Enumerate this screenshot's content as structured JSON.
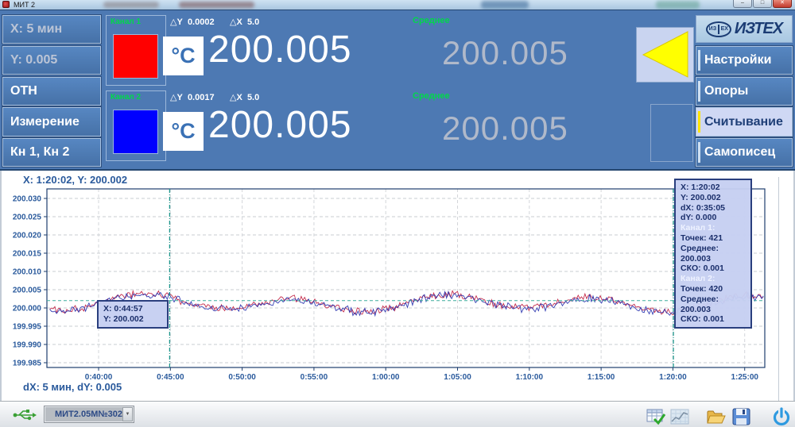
{
  "window": {
    "title": "МИТ 2"
  },
  "sidebar": {
    "items": [
      {
        "label": "X: 5 мин"
      },
      {
        "label": "Y: 0.005"
      },
      {
        "label": "ОТН"
      },
      {
        "label": "Измерение"
      },
      {
        "label": "Кн 1, Кн 2"
      }
    ]
  },
  "channels": [
    {
      "name": "Канал 1",
      "swatch_color": "#ff0000",
      "delta_y_caption": "△",
      "delta_y_axis": "Y",
      "delta_y_value": "0.0002",
      "delta_x_caption": "△",
      "delta_x_axis": "X",
      "delta_x_value": "5.0",
      "unit": "°C",
      "value": "200.005",
      "avg_caption": "Среднее",
      "avg_value": "200.005"
    },
    {
      "name": "Канал 2",
      "swatch_color": "#0000ff",
      "delta_y_caption": "△",
      "delta_y_axis": "Y",
      "delta_y_value": "0.0017",
      "delta_x_caption": "△",
      "delta_x_axis": "X",
      "delta_x_value": "5.0",
      "unit": "°C",
      "value": "200.005",
      "avg_caption": "Среднее",
      "avg_value": "200.005"
    }
  ],
  "nav": {
    "logo_text": "ИЗТЕХ",
    "logo_badge_left": "ИЗ",
    "logo_badge_right": "ЕХ",
    "items": [
      {
        "label": "Настройки",
        "active": false
      },
      {
        "label": "Опоры",
        "active": false
      },
      {
        "label": "Считывание",
        "active": true
      },
      {
        "label": "Самописец",
        "active": false
      }
    ]
  },
  "chart": {
    "readout": "X: 1:20:02, Y: 200.002",
    "footer": "dX: 5 мин, dY: 0.005",
    "tooltip_cursor1": {
      "x": "X: 0:44:57",
      "y": "Y: 200.002"
    },
    "tooltip_stats": {
      "x": "X: 1:20:02",
      "y": "Y: 200.002",
      "dx": "dX: 0:35:05",
      "dy": "dY: 0.000",
      "ch1_title": "Канал 1:",
      "ch1_points": "Точек: 421",
      "ch1_mean": "Среднее: 200.003",
      "ch1_std": "СКО: 0.001",
      "ch2_title": "Канал 2:",
      "ch2_points": "Точек: 420",
      "ch2_mean": "Среднее: 200.003",
      "ch2_std": "СКО: 0.001"
    }
  },
  "chart_data": {
    "type": "line",
    "x_ticks": [
      {
        "minutes": 40,
        "label": "0:40:00"
      },
      {
        "minutes": 45,
        "label": "0:45:00"
      },
      {
        "minutes": 50,
        "label": "0:50:00"
      },
      {
        "minutes": 55,
        "label": "0:55:00"
      },
      {
        "minutes": 60,
        "label": "1:00:00"
      },
      {
        "minutes": 65,
        "label": "1:05:00"
      },
      {
        "minutes": 70,
        "label": "1:10:00"
      },
      {
        "minutes": 75,
        "label": "1:15:00"
      },
      {
        "minutes": 80,
        "label": "1:20:00"
      },
      {
        "minutes": 85,
        "label": "1:25:00"
      }
    ],
    "y_ticks": [
      {
        "value": 200.03,
        "label": "200.030"
      },
      {
        "value": 200.025,
        "label": "200.025"
      },
      {
        "value": 200.02,
        "label": "200.020"
      },
      {
        "value": 200.015,
        "label": "200.015"
      },
      {
        "value": 200.01,
        "label": "200.010"
      },
      {
        "value": 200.005,
        "label": "200.005"
      },
      {
        "value": 200.0,
        "label": "200.000"
      },
      {
        "value": 199.995,
        "label": "199.995"
      },
      {
        "value": 199.99,
        "label": "199.990"
      },
      {
        "value": 199.985,
        "label": "199.985"
      }
    ],
    "y_step": 0.005,
    "x_range_minutes": [
      36.4,
      86.4
    ],
    "data_t_range": [
      36.6,
      86.3
    ],
    "baseline": 200.0012,
    "waves": [
      {
        "period": 10.5,
        "amp": 0.0018,
        "t_ref": 40.5
      },
      {
        "period": 23,
        "amp": 0.0008,
        "t_ref": 38
      }
    ],
    "noise_amp": 0.0011,
    "series": [
      {
        "name": "Канал 1",
        "color": "#c22343",
        "points": 421,
        "mean": 200.003,
        "std": 0.001,
        "gen": {
          "seed": 101,
          "offset": 0.0002
        }
      },
      {
        "name": "Канал 2",
        "color": "#2a35b0",
        "points": 420,
        "mean": 200.003,
        "std": 0.001,
        "gen": {
          "seed": 202,
          "offset": -0.0001
        }
      }
    ],
    "cursors": {
      "vertical_minutes": [
        44.95,
        80.0333
      ],
      "horizontal_value": 200.002,
      "color": "#1f968c"
    }
  },
  "statusbar": {
    "device_select": {
      "value": "МИТ2.05М№302"
    }
  }
}
